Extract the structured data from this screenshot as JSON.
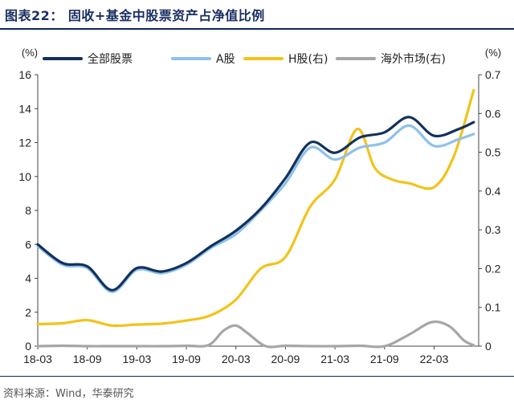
{
  "header": {
    "title": "图表22： 固收+基金中股票资产占净值比例"
  },
  "footer": {
    "source": "资料来源：Wind，华泰研究"
  },
  "chart_data": {
    "type": "line",
    "title": "图表22： 固收+基金中股票资产占净值比例",
    "left_unit": "(%)",
    "right_unit": "(%)",
    "ylim_left": [
      0,
      16
    ],
    "ylim_right": [
      0,
      0.7
    ],
    "left_ticks": [
      "0",
      "2",
      "4",
      "6",
      "8",
      "10",
      "12",
      "14",
      "16"
    ],
    "right_ticks": [
      "0",
      "0.1",
      "0.2",
      "0.3",
      "0.4",
      "0.5",
      "0.6",
      "0.7"
    ],
    "x_ticks": [
      "18-03",
      "18-09",
      "19-03",
      "19-09",
      "20-03",
      "20-09",
      "21-03",
      "21-09",
      "22-03"
    ],
    "xlim": [
      0,
      17.8
    ],
    "x_tick_positions": [
      0,
      2,
      4,
      6,
      8,
      10,
      12,
      14,
      16
    ],
    "legend_position": "top",
    "series": [
      {
        "name": "全部股票",
        "axis": "left",
        "color": "#13315c",
        "x": [
          0,
          1,
          2,
          3,
          4,
          5,
          6,
          7,
          8,
          9,
          10,
          11,
          12,
          13,
          14,
          15,
          16,
          17,
          17.6
        ],
        "values": [
          6.0,
          4.9,
          4.7,
          3.3,
          4.6,
          4.4,
          4.9,
          5.9,
          6.8,
          8.1,
          9.9,
          12.0,
          11.4,
          12.3,
          12.6,
          13.5,
          12.4,
          12.8,
          13.2
        ]
      },
      {
        "name": "A股",
        "axis": "left",
        "color": "#8ec1eb",
        "x": [
          0,
          1,
          2,
          3,
          4,
          5,
          6,
          7,
          8,
          9,
          10,
          11,
          12,
          13,
          14,
          15,
          16,
          17,
          17.6
        ],
        "values": [
          5.9,
          4.8,
          4.6,
          3.2,
          4.5,
          4.3,
          4.8,
          5.8,
          6.6,
          8.0,
          9.6,
          11.7,
          11.0,
          11.7,
          12.0,
          13.0,
          11.8,
          12.2,
          12.5
        ]
      },
      {
        "name": "H股(右)",
        "axis": "right",
        "color": "#f2c31a",
        "x": [
          0,
          1,
          2,
          3,
          4,
          5,
          6,
          7,
          8,
          9,
          10,
          11,
          12,
          12.9,
          13.6,
          14.3,
          15,
          16,
          16.8,
          17.6
        ],
        "values": [
          0.057,
          0.059,
          0.067,
          0.053,
          0.056,
          0.058,
          0.066,
          0.08,
          0.12,
          0.2,
          0.23,
          0.36,
          0.43,
          0.56,
          0.46,
          0.43,
          0.42,
          0.41,
          0.49,
          0.66
        ]
      },
      {
        "name": "海外市场(右)",
        "axis": "right",
        "color": "#a6a6a6",
        "x": [
          0,
          1,
          2,
          3,
          4,
          5,
          6,
          6.9,
          7.5,
          8,
          8.5,
          9.2,
          10,
          11,
          12,
          13,
          14,
          15,
          15.9,
          16.6,
          17.2,
          17.6
        ],
        "values": [
          0.0,
          0.001,
          0.0,
          0.0,
          0.0,
          0.0,
          0.001,
          0.003,
          0.04,
          0.053,
          0.032,
          0.0,
          0.001,
          0.0,
          0.0,
          0.001,
          0.0,
          0.03,
          0.062,
          0.052,
          0.015,
          0.002
        ]
      }
    ]
  }
}
